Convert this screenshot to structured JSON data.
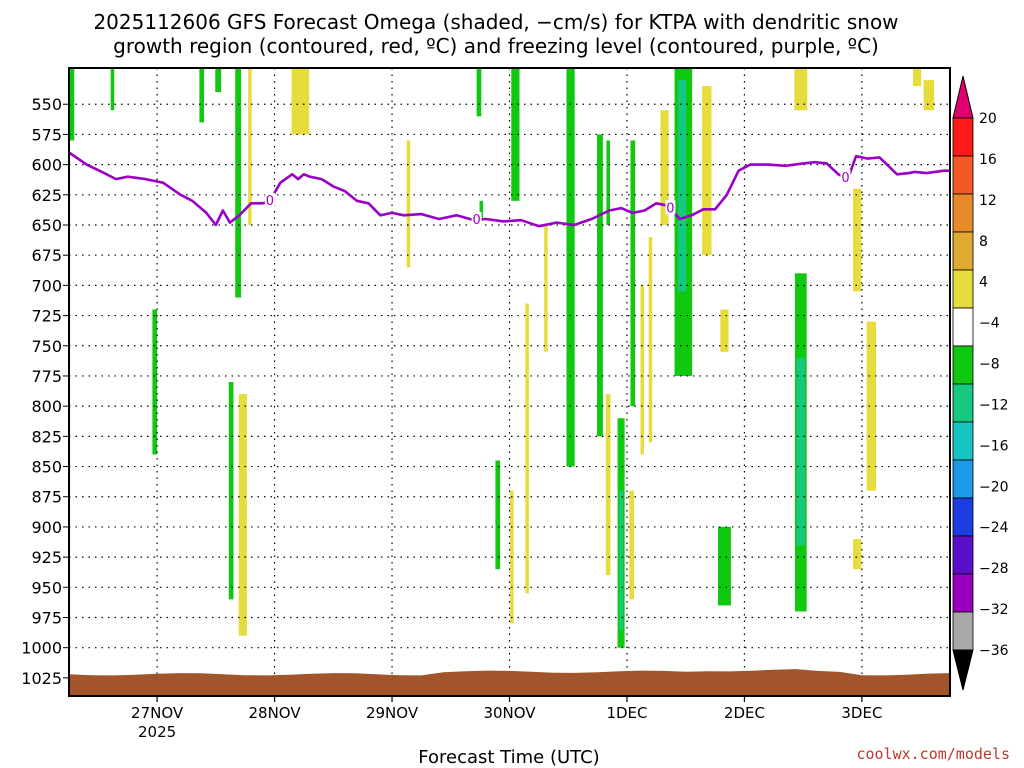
{
  "title_line1": "2025112606 GFS Forecast Omega (shaded, −cm/s) for KTPA with dendritic snow",
  "title_line2": "growth region (contoured, red, ºC) and freezing level (contoured, purple, ºC)",
  "credit": "coolwx.com/models",
  "chart_data": {
    "type": "heatmap",
    "xlabel": "Forecast Time (UTC)",
    "ylabel": "",
    "x_range": [
      -0.75,
      6.75
    ],
    "x_unit": "days from 27NOV 00Z",
    "x_ticks": [
      {
        "label": "27NOV",
        "sub": "2025",
        "x": 0
      },
      {
        "label": "28NOV",
        "sub": "",
        "x": 1
      },
      {
        "label": "29NOV",
        "sub": "",
        "x": 2
      },
      {
        "label": "30NOV",
        "sub": "",
        "x": 3
      },
      {
        "label": "1DEC",
        "sub": "",
        "x": 4
      },
      {
        "label": "2DEC",
        "sub": "",
        "x": 5
      },
      {
        "label": "3DEC",
        "sub": "",
        "x": 6
      }
    ],
    "y_range": [
      520,
      1040
    ],
    "y_ticks": [
      "550",
      "575",
      "600",
      "625",
      "650",
      "675",
      "700",
      "725",
      "750",
      "775",
      "800",
      "825",
      "850",
      "875",
      "900",
      "925",
      "950",
      "975",
      "1000",
      "1025"
    ],
    "colorbar": {
      "labels": [
        "20",
        "16",
        "12",
        "8",
        "4",
        "−4",
        "−8",
        "−12",
        "−16",
        "−20",
        "−24",
        "−28",
        "−32",
        "−36"
      ],
      "colors": [
        "#ff1a1a",
        "#f25a25",
        "#e88a2a",
        "#e0aa30",
        "#e6dd3c",
        "#ffffff",
        "#11c811",
        "#17c880",
        "#16c4c0",
        "#1a9ae8",
        "#1b3ee0",
        "#5a10c8",
        "#9a00c0",
        "#a8a8a8"
      ],
      "top_arrow_color": "#e0006e",
      "bottom_arrow_color": "#000000"
    },
    "omega_regions": [
      {
        "x": -0.73,
        "p1": 515,
        "p2": 580,
        "w": 0.05,
        "color": "#11c811"
      },
      {
        "x": -0.38,
        "p1": 515,
        "p2": 555,
        "w": 0.03,
        "color": "#11c811"
      },
      {
        "x": -0.02,
        "p1": 720,
        "p2": 840,
        "w": 0.04,
        "color": "#11c811"
      },
      {
        "x": 0.38,
        "p1": 515,
        "p2": 565,
        "w": 0.04,
        "color": "#11c811"
      },
      {
        "x": 0.52,
        "p1": 515,
        "p2": 540,
        "w": 0.05,
        "color": "#11c811"
      },
      {
        "x": 0.63,
        "p1": 780,
        "p2": 960,
        "w": 0.04,
        "color": "#11c811"
      },
      {
        "x": 0.69,
        "p1": 515,
        "p2": 710,
        "w": 0.05,
        "color": "#11c811"
      },
      {
        "x": 0.73,
        "p1": 790,
        "p2": 990,
        "w": 0.07,
        "color": "#e6dd3c"
      },
      {
        "x": 0.79,
        "p1": 515,
        "p2": 650,
        "w": 0.03,
        "color": "#e6dd3c"
      },
      {
        "x": 1.22,
        "p1": 515,
        "p2": 575,
        "w": 0.15,
        "color": "#e6dd3c"
      },
      {
        "x": 2.14,
        "p1": 580,
        "p2": 685,
        "w": 0.03,
        "color": "#e6dd3c"
      },
      {
        "x": 2.74,
        "p1": 515,
        "p2": 560,
        "w": 0.04,
        "color": "#11c811"
      },
      {
        "x": 2.76,
        "p1": 630,
        "p2": 645,
        "w": 0.03,
        "color": "#11c811"
      },
      {
        "x": 2.9,
        "p1": 845,
        "p2": 935,
        "w": 0.04,
        "color": "#11c811"
      },
      {
        "x": 3.05,
        "p1": 515,
        "p2": 630,
        "w": 0.07,
        "color": "#11c811"
      },
      {
        "x": 3.02,
        "p1": 870,
        "p2": 980,
        "w": 0.03,
        "color": "#e6dd3c"
      },
      {
        "x": 3.15,
        "p1": 715,
        "p2": 955,
        "w": 0.03,
        "color": "#e6dd3c"
      },
      {
        "x": 3.31,
        "p1": 650,
        "p2": 755,
        "w": 0.03,
        "color": "#e6dd3c"
      },
      {
        "x": 3.52,
        "p1": 515,
        "p2": 850,
        "w": 0.07,
        "color": "#11c811"
      },
      {
        "x": 3.77,
        "p1": 575,
        "p2": 825,
        "w": 0.05,
        "color": "#11c811"
      },
      {
        "x": 3.84,
        "p1": 580,
        "p2": 650,
        "w": 0.03,
        "color": "#11c811"
      },
      {
        "x": 3.84,
        "p1": 790,
        "p2": 940,
        "w": 0.04,
        "color": "#e6dd3c"
      },
      {
        "x": 3.95,
        "p1": 810,
        "p2": 1000,
        "w": 0.06,
        "color": "#11c811"
      },
      {
        "x": 3.95,
        "p1": 870,
        "p2": 985,
        "w": 0.03,
        "color": "#17c880"
      },
      {
        "x": 4.05,
        "p1": 580,
        "p2": 800,
        "w": 0.04,
        "color": "#11c811"
      },
      {
        "x": 4.04,
        "p1": 870,
        "p2": 960,
        "w": 0.04,
        "color": "#e6dd3c"
      },
      {
        "x": 4.13,
        "p1": 700,
        "p2": 840,
        "w": 0.03,
        "color": "#e6dd3c"
      },
      {
        "x": 4.2,
        "p1": 660,
        "p2": 830,
        "w": 0.03,
        "color": "#e6dd3c"
      },
      {
        "x": 4.32,
        "p1": 555,
        "p2": 650,
        "w": 0.07,
        "color": "#e6dd3c"
      },
      {
        "x": 4.48,
        "p1": 515,
        "p2": 775,
        "w": 0.15,
        "color": "#11c811"
      },
      {
        "x": 4.47,
        "p1": 530,
        "p2": 705,
        "w": 0.07,
        "color": "#17c880"
      },
      {
        "x": 4.68,
        "p1": 535,
        "p2": 675,
        "w": 0.08,
        "color": "#e6dd3c"
      },
      {
        "x": 4.83,
        "p1": 720,
        "p2": 755,
        "w": 0.07,
        "color": "#e6dd3c"
      },
      {
        "x": 4.83,
        "p1": 900,
        "p2": 965,
        "w": 0.11,
        "color": "#11c811"
      },
      {
        "x": 5.48,
        "p1": 515,
        "p2": 555,
        "w": 0.11,
        "color": "#e6dd3c"
      },
      {
        "x": 5.48,
        "p1": 690,
        "p2": 970,
        "w": 0.1,
        "color": "#11c811"
      },
      {
        "x": 5.48,
        "p1": 760,
        "p2": 915,
        "w": 0.07,
        "color": "#17c880"
      },
      {
        "x": 5.96,
        "p1": 620,
        "p2": 705,
        "w": 0.07,
        "color": "#e6dd3c"
      },
      {
        "x": 5.96,
        "p1": 910,
        "p2": 935,
        "w": 0.07,
        "color": "#e6dd3c"
      },
      {
        "x": 6.08,
        "p1": 730,
        "p2": 870,
        "w": 0.08,
        "color": "#e6dd3c"
      },
      {
        "x": 6.47,
        "p1": 515,
        "p2": 535,
        "w": 0.07,
        "color": "#e6dd3c"
      },
      {
        "x": 6.57,
        "p1": 530,
        "p2": 555,
        "w": 0.09,
        "color": "#e6dd3c"
      }
    ],
    "freezing_level": {
      "label": "0",
      "color": "#9b00c8",
      "label_positions": [
        0.96,
        2.72,
        4.37,
        5.86
      ],
      "x": [
        -0.75,
        -0.6,
        -0.45,
        -0.35,
        -0.25,
        -0.1,
        0.05,
        0.2,
        0.3,
        0.42,
        0.5,
        0.56,
        0.62,
        0.7,
        0.8,
        0.9,
        0.96,
        1.05,
        1.15,
        1.2,
        1.25,
        1.3,
        1.4,
        1.5,
        1.6,
        1.7,
        1.8,
        1.9,
        2.0,
        2.1,
        2.25,
        2.4,
        2.55,
        2.7,
        2.8,
        2.95,
        3.1,
        3.25,
        3.4,
        3.55,
        3.7,
        3.85,
        3.95,
        4.05,
        4.15,
        4.25,
        4.35,
        4.45,
        4.55,
        4.65,
        4.75,
        4.85,
        4.95,
        5.05,
        5.2,
        5.35,
        5.5,
        5.6,
        5.7,
        5.8,
        5.88,
        5.95,
        6.05,
        6.15,
        6.3,
        6.4,
        6.45,
        6.55,
        6.7,
        6.75
      ],
      "p": [
        590,
        600,
        607,
        612,
        610,
        612,
        615,
        625,
        630,
        640,
        650,
        638,
        648,
        642,
        632,
        632,
        630,
        615,
        608,
        612,
        608,
        610,
        612,
        618,
        622,
        630,
        632,
        642,
        640,
        642,
        641,
        645,
        642,
        646,
        645,
        647,
        646,
        651,
        648,
        650,
        645,
        638,
        636,
        640,
        638,
        632,
        634,
        645,
        642,
        637,
        637,
        625,
        605,
        600,
        600,
        601,
        599,
        598,
        599,
        608,
        612,
        593,
        595,
        594,
        608,
        607,
        606,
        607,
        605,
        605
      ]
    },
    "surface": {
      "color": "#a2552a",
      "pressure": 1022
    }
  }
}
